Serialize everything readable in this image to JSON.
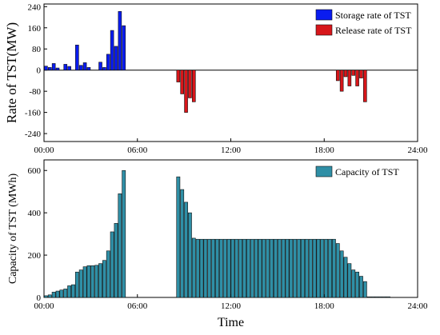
{
  "chart_data": [
    {
      "type": "bar",
      "ylabel": "Rate of TST(MW)",
      "xlabel": "",
      "xlim_hours": [
        0,
        24
      ],
      "ylim": [
        -270,
        250
      ],
      "y_ticks": [
        -240,
        -160,
        -80,
        0,
        80,
        160,
        240
      ],
      "y_tick_labels": [
        "-240",
        "-160",
        "-80",
        "0",
        "80",
        "160",
        "240"
      ],
      "x_ticks": [
        0,
        6,
        12,
        18,
        24
      ],
      "x_tick_labels": [
        "00:00",
        "06:00",
        "12:00",
        "18:00",
        "24:00"
      ],
      "legend": "top-right",
      "zero_line": true,
      "series": [
        {
          "name": "Storage rate of TST",
          "color": "#0a1cf0",
          "x": [
            0.0,
            0.25,
            0.5,
            0.75,
            1.25,
            1.5,
            2.0,
            2.25,
            2.5,
            2.75,
            3.5,
            3.75,
            4.0,
            4.25,
            4.5,
            4.75,
            5.0
          ],
          "values": [
            15,
            10,
            25,
            8,
            22,
            14,
            95,
            18,
            28,
            10,
            30,
            10,
            60,
            150,
            90,
            222,
            168
          ]
        },
        {
          "name": "Release rate of TST",
          "color": "#d7161a",
          "x": [
            8.5,
            8.75,
            9.0,
            9.25,
            9.5,
            18.75,
            19.0,
            19.25,
            19.5,
            19.75,
            20.0,
            20.25,
            20.5
          ],
          "values": [
            -45,
            -90,
            -160,
            -105,
            -120,
            -40,
            -80,
            -25,
            -60,
            -20,
            -60,
            -30,
            -120
          ]
        }
      ]
    },
    {
      "type": "bar",
      "ylabel": "Capacity of TST (MWh)",
      "xlabel": "Time",
      "xlim_hours": [
        0,
        24
      ],
      "ylim": [
        0,
        650
      ],
      "y_ticks": [
        0,
        200,
        400,
        600
      ],
      "y_tick_labels": [
        "0",
        "200",
        "400",
        "600"
      ],
      "x_ticks": [
        0,
        6,
        12,
        18,
        24
      ],
      "x_tick_labels": [
        "00:00",
        "06:00",
        "12:00",
        "18:00",
        "24:00"
      ],
      "legend": "top-right",
      "series": [
        {
          "name": "Capacity of TST",
          "color": "#2f8fa6",
          "x": [
            0,
            0.25,
            0.5,
            0.75,
            1.0,
            1.25,
            1.5,
            1.75,
            2.0,
            2.25,
            2.5,
            2.75,
            3.0,
            3.25,
            3.5,
            3.75,
            4.0,
            4.25,
            4.5,
            4.75,
            5.0,
            8.5,
            8.75,
            9.0,
            9.25,
            9.5,
            9.75,
            10.0,
            10.25,
            10.5,
            10.75,
            11.0,
            11.25,
            11.5,
            11.75,
            12.0,
            12.25,
            12.5,
            12.75,
            13.0,
            13.25,
            13.5,
            13.75,
            14.0,
            14.25,
            14.5,
            14.75,
            15.0,
            15.25,
            15.5,
            15.75,
            16.0,
            16.25,
            16.5,
            16.75,
            17.0,
            17.25,
            17.5,
            17.75,
            18.0,
            18.25,
            18.5,
            18.75,
            19.0,
            19.25,
            19.5,
            19.75,
            20.0,
            20.25,
            20.5,
            20.75,
            21.0,
            21.25,
            21.5,
            21.75,
            22.0
          ],
          "values": [
            8,
            12,
            25,
            30,
            35,
            40,
            55,
            60,
            120,
            130,
            145,
            150,
            150,
            152,
            160,
            175,
            220,
            310,
            350,
            490,
            600,
            570,
            510,
            450,
            400,
            280,
            275,
            275,
            275,
            275,
            275,
            275,
            275,
            275,
            275,
            275,
            275,
            275,
            275,
            275,
            275,
            275,
            275,
            275,
            275,
            275,
            275,
            275,
            275,
            275,
            275,
            275,
            275,
            275,
            275,
            275,
            275,
            275,
            275,
            275,
            275,
            275,
            255,
            220,
            190,
            160,
            130,
            120,
            100,
            75,
            3,
            3,
            3,
            3,
            3,
            3
          ]
        }
      ]
    }
  ]
}
